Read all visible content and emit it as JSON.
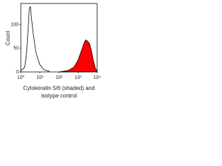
{
  "chart_data": {
    "type": "histogram-overlay",
    "xlabel": [
      "Cytokeratin 5/6 (shaded) and",
      "isotype control"
    ],
    "ylabel": "Count",
    "xscale": "log",
    "xlim": [
      1,
      10000
    ],
    "xticks": [
      {
        "value": 1,
        "label": "10⁰"
      },
      {
        "value": 10,
        "label": "10¹"
      },
      {
        "value": 100,
        "label": "10²"
      },
      {
        "value": 1000,
        "label": "10³"
      },
      {
        "value": 10000,
        "label": "10⁴"
      }
    ],
    "ylim": [
      0,
      145
    ],
    "yticks": [
      0,
      50,
      100
    ],
    "series": [
      {
        "color": "#000000",
        "fill": "none",
        "x": [
          1,
          1.6,
          2,
          2.5,
          2.8,
          3.2,
          3.5,
          4.5,
          6.3,
          10,
          16,
          32
        ],
        "values": [
          2,
          10,
          40,
          100,
          135,
          138,
          120,
          80,
          40,
          15,
          5,
          1
        ]
      },
      {
        "color": "#000000",
        "fill": "#ff0000",
        "x": [
          100,
          300,
          600,
          1000,
          1500,
          2000,
          2500,
          3200,
          4000,
          5000,
          6300,
          8000,
          10000
        ],
        "values": [
          0,
          3,
          10,
          25,
          45,
          60,
          68,
          65,
          60,
          45,
          25,
          8,
          2
        ]
      }
    ]
  }
}
